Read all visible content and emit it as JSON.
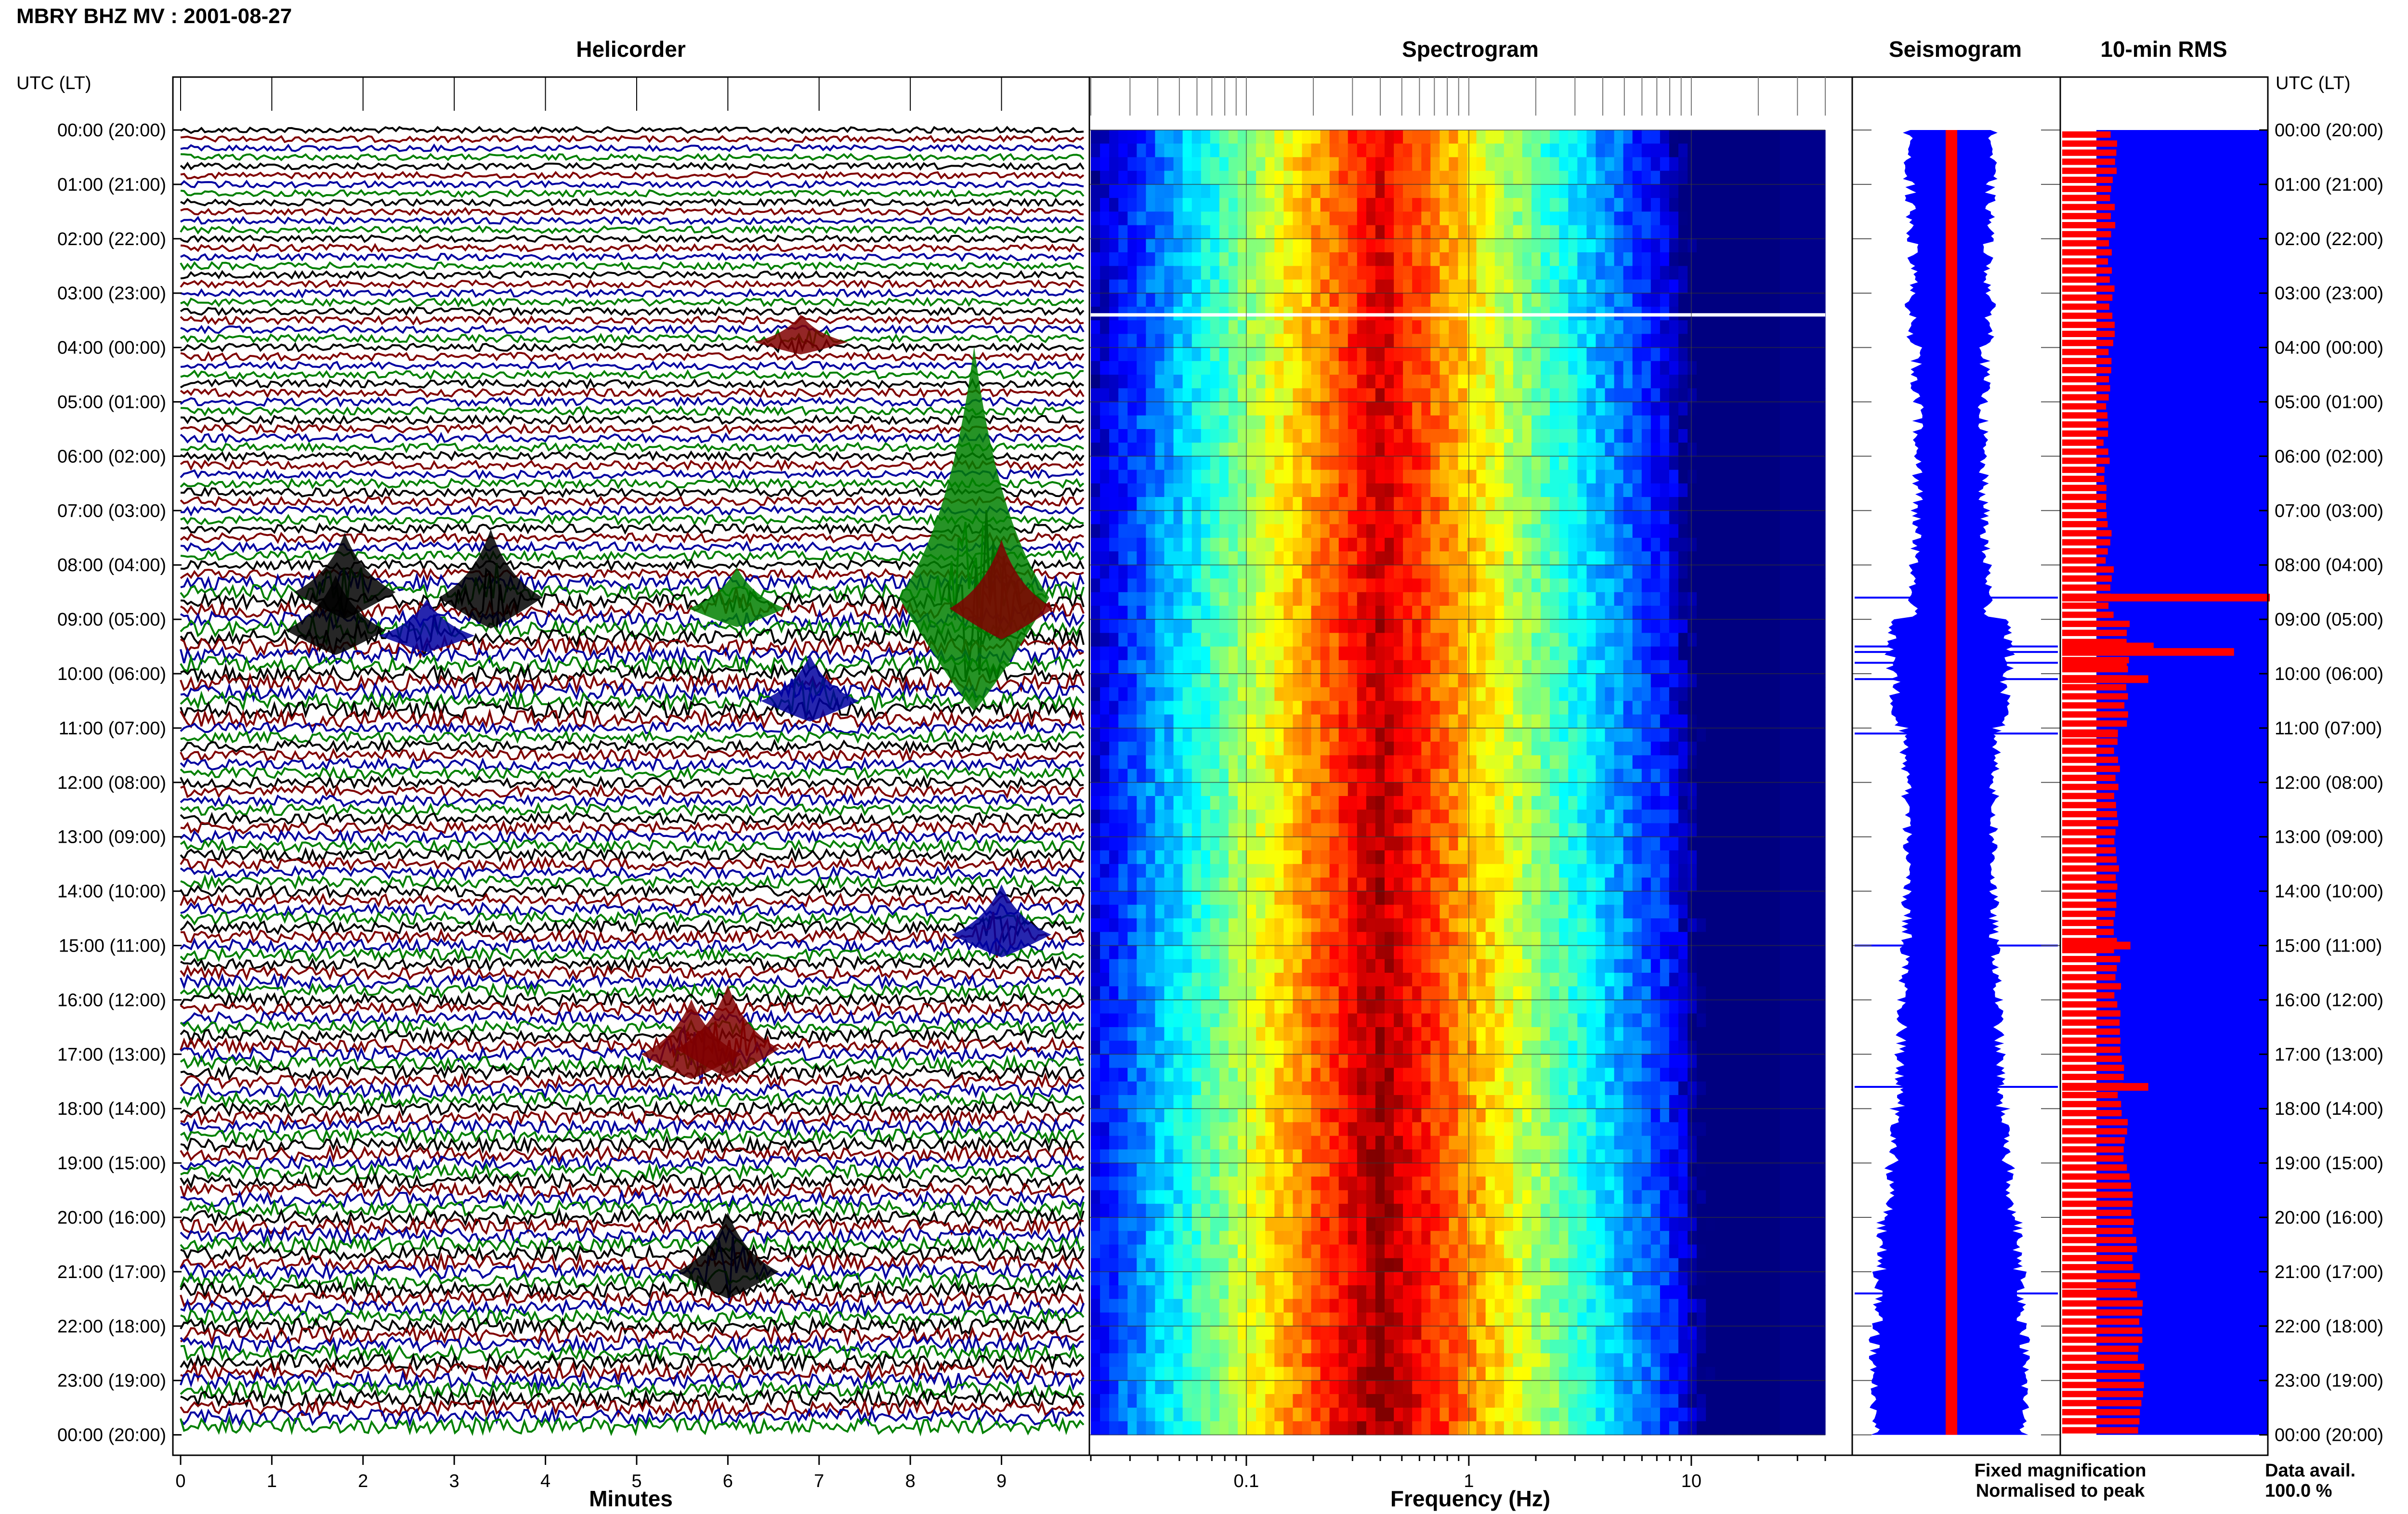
{
  "title": "MBRY BHZ MV : 2001-08-27",
  "time_axis_label": "UTC (LT)",
  "time_labels": [
    "00:00 (20:00)",
    "01:00 (21:00)",
    "02:00 (22:00)",
    "03:00 (23:00)",
    "04:00 (00:00)",
    "05:00 (01:00)",
    "06:00 (02:00)",
    "07:00 (03:00)",
    "08:00 (04:00)",
    "09:00 (05:00)",
    "10:00 (06:00)",
    "11:00 (07:00)",
    "12:00 (08:00)",
    "13:00 (09:00)",
    "14:00 (10:00)",
    "15:00 (11:00)",
    "16:00 (12:00)",
    "17:00 (13:00)",
    "18:00 (14:00)",
    "19:00 (15:00)",
    "20:00 (16:00)",
    "21:00 (17:00)",
    "22:00 (18:00)",
    "23:00 (19:00)",
    "00:00 (20:00)"
  ],
  "panels": {
    "helicorder": {
      "title": "Helicorder",
      "xlabel": "Minutes",
      "ticks": [
        "0",
        "1",
        "2",
        "3",
        "4",
        "5",
        "6",
        "7",
        "8",
        "9"
      ]
    },
    "spectrogram": {
      "title": "Spectrogram",
      "xlabel": "Frequency (Hz)",
      "ticks": [
        "0.1",
        "1",
        "10"
      ]
    },
    "seismogram": {
      "title": "Seismogram"
    },
    "rms": {
      "title": "10-min RMS"
    }
  },
  "legend": {
    "fixed": "Fixed magnification",
    "normalised": "Normalised to peak",
    "fixed_color": "#0000ff",
    "normalised_color": "#ff0000"
  },
  "data_avail": {
    "label": "Data avail.",
    "value": "100.0 %"
  },
  "chart_data": [
    {
      "type": "line",
      "name": "helicorder",
      "xlabel": "Minutes",
      "xlim": [
        0,
        10
      ],
      "trace_colors": [
        "#000000",
        "#800000",
        "#0000a0",
        "#008000"
      ],
      "traces_per_hour": 6,
      "events": [
        {
          "hour": 8.5,
          "minute": 1.8,
          "amp": 1.3,
          "color": "#000000"
        },
        {
          "hour": 9.2,
          "minute": 1.7,
          "amp": 1.2,
          "color": "#000000"
        },
        {
          "hour": 9.3,
          "minute": 2.7,
          "amp": 0.8,
          "color": "#0000a0"
        },
        {
          "hour": 8.6,
          "minute": 3.4,
          "amp": 1.5,
          "color": "#000000"
        },
        {
          "hour": 8.8,
          "minute": 6.1,
          "amp": 0.9,
          "color": "#008000"
        },
        {
          "hour": 8.6,
          "minute": 8.7,
          "amp": 5.5,
          "color": "#008000"
        },
        {
          "hour": 8.8,
          "minute": 9.0,
          "amp": 1.5,
          "color": "#800000"
        },
        {
          "hour": 10.5,
          "minute": 6.9,
          "amp": 1.0,
          "color": "#0000a0"
        },
        {
          "hour": 14.8,
          "minute": 9.0,
          "amp": 1.1,
          "color": "#0000a0"
        },
        {
          "hour": 17.0,
          "minute": 5.6,
          "amp": 1.2,
          "color": "#800000"
        },
        {
          "hour": 16.9,
          "minute": 6.0,
          "amp": 1.4,
          "color": "#800000"
        },
        {
          "hour": 21.0,
          "minute": 6.0,
          "amp": 1.3,
          "color": "#000000"
        },
        {
          "hour": 3.9,
          "minute": 6.8,
          "amp": 0.6,
          "color": "#800000"
        }
      ]
    },
    {
      "type": "heatmap",
      "name": "spectrogram",
      "xlabel": "Frequency (Hz)",
      "xscale": "log",
      "xlim": [
        0.02,
        40
      ],
      "ylim_hours": [
        0,
        24
      ],
      "peak_frequency_hz": 0.4,
      "gap_hour": 3.4,
      "colormap": "jet"
    },
    {
      "type": "line",
      "name": "seismogram",
      "series": [
        {
          "name": "Fixed magnification",
          "color": "#0000ff"
        },
        {
          "name": "Normalised to peak",
          "color": "#ff0000"
        }
      ],
      "hourly_rms_relative": [
        0.4,
        0.38,
        0.36,
        0.38,
        0.32,
        0.3,
        0.3,
        0.32,
        0.36,
        0.6,
        0.55,
        0.45,
        0.42,
        0.42,
        0.42,
        0.45,
        0.48,
        0.5,
        0.55,
        0.62,
        0.7,
        0.75,
        0.78,
        0.78
      ]
    },
    {
      "type": "bar",
      "name": "10-min RMS",
      "orientation": "horizontal",
      "spikes": [
        {
          "hour": 8.6,
          "value": 1.0
        },
        {
          "hour": 9.5,
          "value": 0.35
        },
        {
          "hour": 9.6,
          "value": 0.8
        },
        {
          "hour": 9.8,
          "value": 0.2
        },
        {
          "hour": 10.1,
          "value": 0.32
        },
        {
          "hour": 11.1,
          "value": 0.15
        },
        {
          "hour": 15.0,
          "value": 0.22
        },
        {
          "hour": 17.6,
          "value": 0.32
        },
        {
          "hour": 21.4,
          "value": 0.22
        }
      ]
    }
  ]
}
